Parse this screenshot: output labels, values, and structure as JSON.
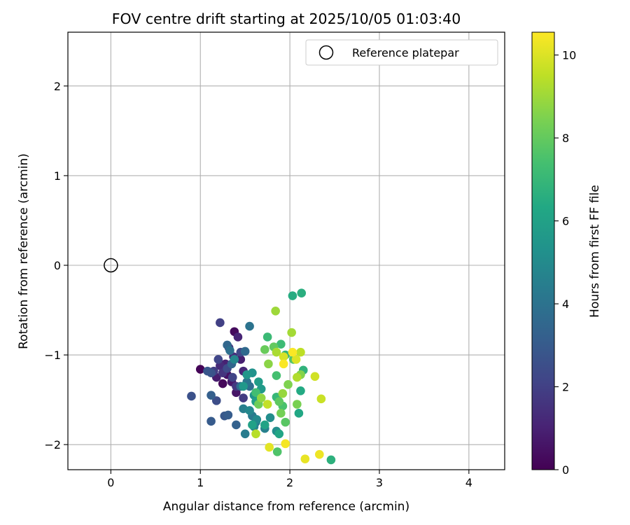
{
  "chart_data": {
    "type": "scatter",
    "title": "FOV centre drift starting at 2025/10/05 01:03:40",
    "xlabel": "Angular distance from reference (arcmin)",
    "ylabel": "Rotation from reference (arcmin)",
    "xlim": [
      -0.48,
      4.4
    ],
    "ylim": [
      -2.28,
      2.6
    ],
    "xticks": [
      0,
      1,
      2,
      3,
      4
    ],
    "yticks": [
      -2,
      -1,
      0,
      1,
      2
    ],
    "grid": true,
    "legend": {
      "label": "Reference platepar",
      "location": "upper right",
      "marker": "open-circle"
    },
    "reference_point": {
      "x": 0,
      "y": 0
    },
    "colorbar": {
      "label": "Hours from first FF file",
      "colormap": "viridis",
      "range": [
        0,
        10.55
      ],
      "ticks": [
        0,
        2,
        4,
        6,
        8,
        10
      ]
    },
    "series": [
      {
        "name": "FOV centre",
        "color_field": "hours",
        "points": [
          {
            "x": 1.0,
            "y": -1.16,
            "hours": 0.1
          },
          {
            "x": 1.25,
            "y": -1.32,
            "hours": 0.2
          },
          {
            "x": 1.38,
            "y": -0.74,
            "hours": 0.3
          },
          {
            "x": 1.3,
            "y": -1.22,
            "hours": 0.5
          },
          {
            "x": 1.4,
            "y": -1.42,
            "hours": 0.6
          },
          {
            "x": 1.35,
            "y": -1.3,
            "hours": 0.7
          },
          {
            "x": 1.18,
            "y": -1.25,
            "hours": 0.8
          },
          {
            "x": 1.45,
            "y": -1.05,
            "hours": 0.9
          },
          {
            "x": 1.28,
            "y": -1.1,
            "hours": 1.0
          },
          {
            "x": 1.42,
            "y": -0.8,
            "hours": 1.1
          },
          {
            "x": 1.48,
            "y": -1.18,
            "hours": 1.2
          },
          {
            "x": 1.22,
            "y": -1.12,
            "hours": 1.3
          },
          {
            "x": 1.37,
            "y": -1.02,
            "hours": 1.4
          },
          {
            "x": 1.32,
            "y": -0.92,
            "hours": 1.5
          },
          {
            "x": 1.25,
            "y": -1.2,
            "hours": 1.6
          },
          {
            "x": 1.4,
            "y": -1.35,
            "hours": 1.7
          },
          {
            "x": 1.48,
            "y": -1.48,
            "hours": 1.8
          },
          {
            "x": 1.15,
            "y": -1.18,
            "hours": 1.9
          },
          {
            "x": 1.22,
            "y": -0.64,
            "hours": 2.0
          },
          {
            "x": 1.36,
            "y": -1.25,
            "hours": 2.1
          },
          {
            "x": 1.2,
            "y": -1.05,
            "hours": 2.2
          },
          {
            "x": 1.45,
            "y": -0.97,
            "hours": 2.3
          },
          {
            "x": 1.3,
            "y": -1.15,
            "hours": 2.4
          },
          {
            "x": 1.18,
            "y": -1.51,
            "hours": 2.5
          },
          {
            "x": 0.9,
            "y": -1.46,
            "hours": 2.6
          },
          {
            "x": 1.12,
            "y": -1.2,
            "hours": 2.7
          },
          {
            "x": 1.08,
            "y": -1.18,
            "hours": 2.8
          },
          {
            "x": 1.27,
            "y": -1.68,
            "hours": 2.9
          },
          {
            "x": 1.12,
            "y": -1.74,
            "hours": 3.0
          },
          {
            "x": 1.31,
            "y": -1.67,
            "hours": 3.1
          },
          {
            "x": 1.12,
            "y": -1.45,
            "hours": 3.2
          },
          {
            "x": 1.4,
            "y": -1.78,
            "hours": 3.3
          },
          {
            "x": 1.35,
            "y": -1.1,
            "hours": 3.4
          },
          {
            "x": 1.3,
            "y": -0.89,
            "hours": 3.5
          },
          {
            "x": 1.5,
            "y": -0.96,
            "hours": 3.6
          },
          {
            "x": 1.45,
            "y": -1.35,
            "hours": 3.7
          },
          {
            "x": 1.55,
            "y": -1.35,
            "hours": 3.8
          },
          {
            "x": 1.33,
            "y": -0.95,
            "hours": 3.9
          },
          {
            "x": 1.55,
            "y": -0.68,
            "hours": 4.0
          },
          {
            "x": 1.52,
            "y": -1.3,
            "hours": 4.1
          },
          {
            "x": 1.62,
            "y": -1.75,
            "hours": 4.2
          },
          {
            "x": 1.58,
            "y": -1.68,
            "hours": 4.3
          },
          {
            "x": 1.5,
            "y": -1.88,
            "hours": 4.4
          },
          {
            "x": 1.48,
            "y": -1.6,
            "hours": 4.5
          },
          {
            "x": 1.72,
            "y": -1.82,
            "hours": 4.6
          },
          {
            "x": 1.6,
            "y": -1.8,
            "hours": 4.7
          },
          {
            "x": 1.38,
            "y": -1.05,
            "hours": 4.8
          },
          {
            "x": 1.55,
            "y": -1.62,
            "hours": 4.9
          },
          {
            "x": 1.63,
            "y": -1.72,
            "hours": 5.0
          },
          {
            "x": 1.78,
            "y": -1.7,
            "hours": 5.1
          },
          {
            "x": 1.85,
            "y": -1.85,
            "hours": 5.2
          },
          {
            "x": 1.58,
            "y": -1.2,
            "hours": 5.3
          },
          {
            "x": 1.6,
            "y": -1.45,
            "hours": 5.4
          },
          {
            "x": 1.52,
            "y": -1.22,
            "hours": 5.5
          },
          {
            "x": 1.48,
            "y": -1.35,
            "hours": 5.6
          },
          {
            "x": 1.68,
            "y": -1.38,
            "hours": 5.7
          },
          {
            "x": 1.65,
            "y": -1.3,
            "hours": 5.8
          },
          {
            "x": 1.62,
            "y": -1.52,
            "hours": 5.9
          },
          {
            "x": 1.58,
            "y": -1.78,
            "hours": 6.0
          },
          {
            "x": 1.72,
            "y": -1.78,
            "hours": 6.1
          },
          {
            "x": 1.88,
            "y": -1.88,
            "hours": 6.2
          },
          {
            "x": 2.1,
            "y": -1.65,
            "hours": 6.3
          },
          {
            "x": 2.12,
            "y": -1.4,
            "hours": 6.4
          },
          {
            "x": 2.03,
            "y": -0.34,
            "hours": 6.5
          },
          {
            "x": 2.13,
            "y": -0.31,
            "hours": 6.6
          },
          {
            "x": 2.46,
            "y": -2.17,
            "hours": 6.7
          },
          {
            "x": 2.15,
            "y": -1.17,
            "hours": 6.8
          },
          {
            "x": 1.95,
            "y": -1.0,
            "hours": 6.9
          },
          {
            "x": 1.85,
            "y": -1.47,
            "hours": 7.0
          },
          {
            "x": 1.75,
            "y": -0.8,
            "hours": 7.1
          },
          {
            "x": 1.9,
            "y": -0.88,
            "hours": 7.2
          },
          {
            "x": 1.62,
            "y": -1.42,
            "hours": 7.3
          },
          {
            "x": 1.85,
            "y": -1.23,
            "hours": 7.4
          },
          {
            "x": 1.92,
            "y": -1.57,
            "hours": 7.5
          },
          {
            "x": 1.86,
            "y": -2.08,
            "hours": 7.6
          },
          {
            "x": 2.04,
            "y": -1.05,
            "hours": 7.7
          },
          {
            "x": 1.95,
            "y": -1.75,
            "hours": 7.8
          },
          {
            "x": 1.88,
            "y": -1.52,
            "hours": 7.9
          },
          {
            "x": 1.82,
            "y": -0.91,
            "hours": 8.0
          },
          {
            "x": 1.72,
            "y": -0.94,
            "hours": 8.1
          },
          {
            "x": 1.65,
            "y": -1.55,
            "hours": 8.2
          },
          {
            "x": 1.9,
            "y": -1.65,
            "hours": 8.3
          },
          {
            "x": 2.08,
            "y": -1.55,
            "hours": 8.4
          },
          {
            "x": 1.98,
            "y": -1.33,
            "hours": 8.5
          },
          {
            "x": 2.12,
            "y": -1.22,
            "hours": 8.6
          },
          {
            "x": 1.76,
            "y": -1.1,
            "hours": 8.7
          },
          {
            "x": 1.68,
            "y": -1.48,
            "hours": 8.8
          },
          {
            "x": 1.92,
            "y": -1.43,
            "hours": 8.9
          },
          {
            "x": 1.84,
            "y": -0.51,
            "hours": 9.0
          },
          {
            "x": 2.02,
            "y": -0.75,
            "hours": 9.1
          },
          {
            "x": 1.85,
            "y": -0.97,
            "hours": 9.2
          },
          {
            "x": 2.08,
            "y": -1.25,
            "hours": 9.3
          },
          {
            "x": 1.62,
            "y": -1.88,
            "hours": 9.4
          },
          {
            "x": 2.12,
            "y": -0.97,
            "hours": 9.5
          },
          {
            "x": 1.75,
            "y": -1.55,
            "hours": 9.6
          },
          {
            "x": 2.35,
            "y": -1.49,
            "hours": 9.7
          },
          {
            "x": 2.28,
            "y": -1.24,
            "hours": 9.8
          },
          {
            "x": 1.93,
            "y": -1.02,
            "hours": 9.9
          },
          {
            "x": 2.07,
            "y": -1.05,
            "hours": 10.0
          },
          {
            "x": 1.77,
            "y": -2.03,
            "hours": 10.1
          },
          {
            "x": 2.17,
            "y": -2.16,
            "hours": 10.2
          },
          {
            "x": 2.33,
            "y": -2.11,
            "hours": 10.3
          },
          {
            "x": 1.95,
            "y": -1.99,
            "hours": 10.4
          },
          {
            "x": 2.03,
            "y": -0.97,
            "hours": 10.5
          },
          {
            "x": 1.93,
            "y": -1.1,
            "hours": 10.5
          }
        ]
      }
    ]
  }
}
